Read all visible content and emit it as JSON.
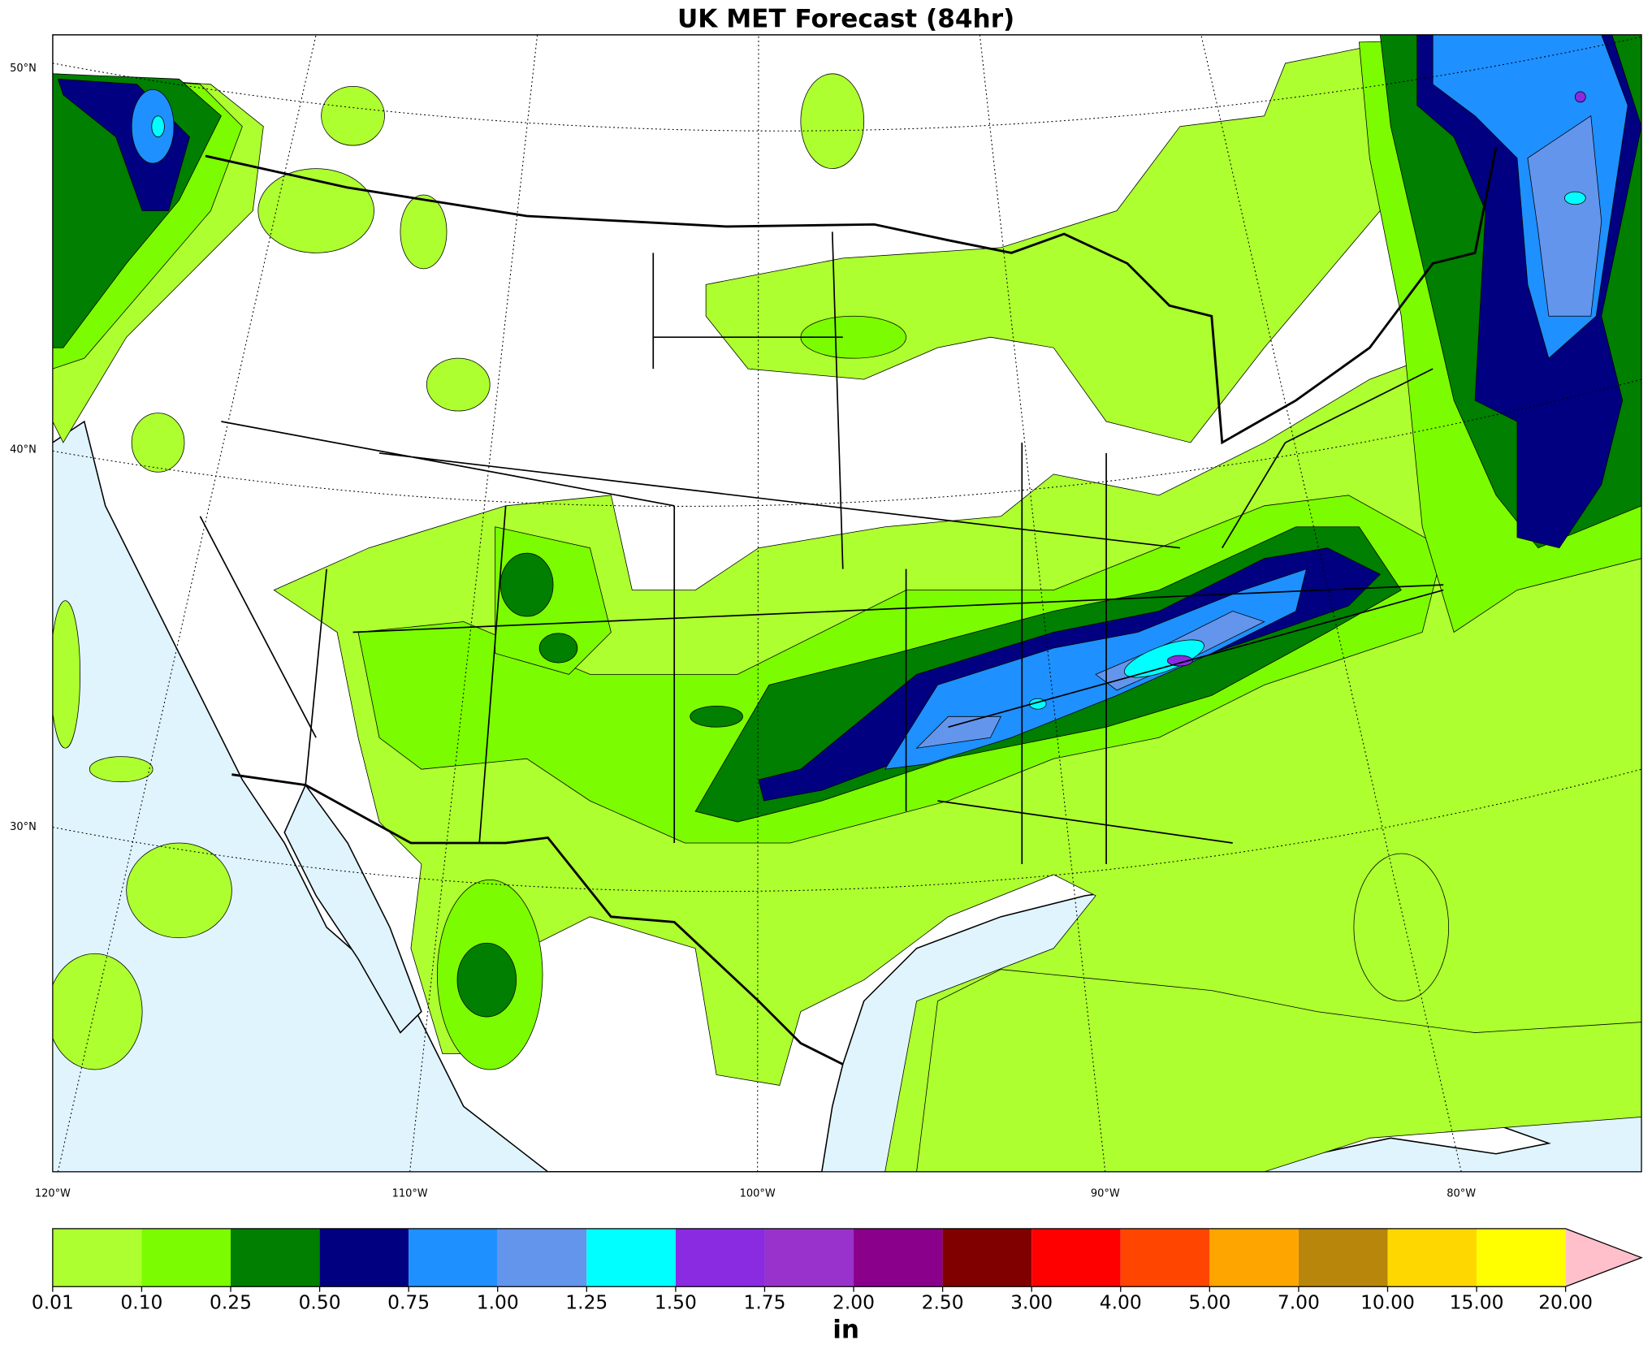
{
  "title": "UK MET Forecast (84hr)",
  "lat_labels": [
    "50°N",
    "40°N",
    "30°N"
  ],
  "lon_labels": [
    "120°W",
    "110°W",
    "100°W",
    "90°W",
    "80°W"
  ],
  "colorbar": {
    "label": "in",
    "ticks": [
      {
        "value": 0.01,
        "label": "0.01"
      },
      {
        "value": 0.1,
        "label": "0.10"
      },
      {
        "value": 0.25,
        "label": "0.25"
      },
      {
        "value": 0.5,
        "label": "0.50"
      },
      {
        "value": 0.75,
        "label": "0.75"
      },
      {
        "value": 1,
        "label": "1.00"
      },
      {
        "value": 1.25,
        "label": "1.25"
      },
      {
        "value": 1.5,
        "label": "1.50"
      },
      {
        "value": 1.75,
        "label": "1.75"
      },
      {
        "value": 2,
        "label": "2.00"
      },
      {
        "value": 2.5,
        "label": "2.50"
      },
      {
        "value": 3,
        "label": "3.00"
      },
      {
        "value": 4,
        "label": "4.00"
      },
      {
        "value": 5,
        "label": "5.00"
      },
      {
        "value": 7,
        "label": "7.00"
      },
      {
        "value": 10,
        "label": "10.00"
      },
      {
        "value": 15,
        "label": "15.00"
      },
      {
        "value": 20,
        "label": "20.00"
      }
    ],
    "colors": [
      "#adff2f",
      "#7cfc00",
      "#007f00",
      "#000080",
      "#1e90ff",
      "#6495ed",
      "#00ffff",
      "#8a2be2",
      "#9932cc",
      "#8b008b",
      "#800000",
      "#ff0000",
      "#ff4500",
      "#ffa500",
      "#b8860b",
      "#ffd700",
      "#ffff00"
    ],
    "extend_color": "#ffc0cb"
  }
}
